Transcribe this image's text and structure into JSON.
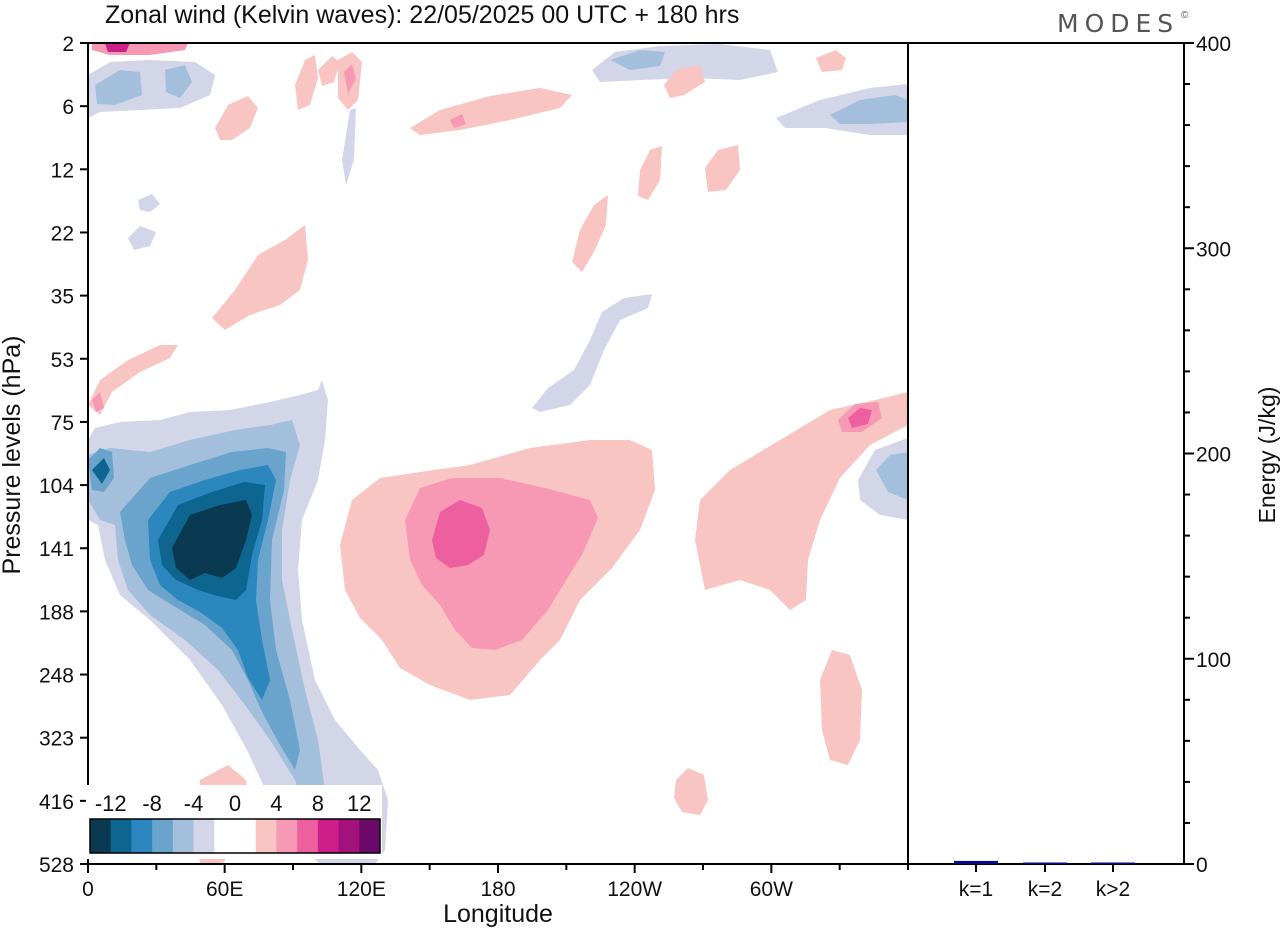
{
  "chart_data": [
    {
      "type": "heatmap",
      "title": "Zonal wind (Kelvin waves):  22/05/2025  00 UTC  + 180 hrs",
      "xlabel": "Longitude",
      "ylabel": "Pressure levels (hPa)",
      "x_ticks": [
        {
          "lon": 0,
          "label": "0"
        },
        {
          "lon": 60,
          "label": "60E"
        },
        {
          "lon": 120,
          "label": "120E"
        },
        {
          "lon": 180,
          "label": "180"
        },
        {
          "lon": 240,
          "label": "120W"
        },
        {
          "lon": 300,
          "label": "60W"
        }
      ],
      "xlim": [
        0,
        360
      ],
      "y_levels": [
        "2",
        "6",
        "12",
        "22",
        "35",
        "53",
        "75",
        "104",
        "141",
        "188",
        "248",
        "323",
        "416",
        "528"
      ],
      "y_scale": "log-pressure",
      "colorbar": {
        "labels": [
          "-12",
          "-8",
          "-4",
          "0",
          "4",
          "8",
          "12"
        ],
        "colors": [
          "#0a3a52",
          "#0d6590",
          "#2b87bd",
          "#6aa3cc",
          "#a3bfdc",
          "#d3d6e8",
          "#ffffff",
          "#ffffff",
          "#f9c5c3",
          "#f799b5",
          "#ee5f9f",
          "#cc1f88",
          "#a3127a",
          "#6b0a6a"
        ],
        "placement": "bottom-left"
      },
      "features": [
        {
          "sign": "negative",
          "peak_ms": -14,
          "lon_center": 45,
          "pressure_center_hPa": 141
        },
        {
          "sign": "positive",
          "peak_ms": 8,
          "lon_center": 165,
          "pressure_center_hPa": 141
        },
        {
          "sign": "positive",
          "peak_ms": 6,
          "lon_center": 345,
          "pressure_center_hPa": 80
        },
        {
          "sign": "negative",
          "peak_ms": -6,
          "lon_center": 355,
          "pressure_center_hPa": 110
        }
      ]
    },
    {
      "type": "bar",
      "ylabel": "Energy (J/kg)",
      "ylim": [
        0,
        400
      ],
      "y_ticks": [
        "0",
        "100",
        "200",
        "300",
        "400"
      ],
      "categories": [
        "k=1",
        "k=2",
        "k>2"
      ],
      "values": [
        1.5,
        0.5,
        0.3
      ],
      "bar_color": "#0a0a80"
    }
  ],
  "brand": "MODES",
  "brand_mark": "©"
}
